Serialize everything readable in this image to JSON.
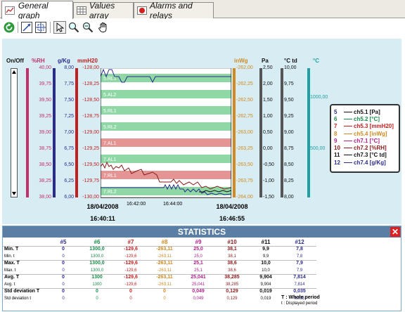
{
  "tabs": [
    {
      "label": "General graph",
      "icon": "line-chart-icon"
    },
    {
      "label": "Values array",
      "icon": "grid-table-icon"
    },
    {
      "label": "Alarms and relays",
      "icon": "alarm-bell-icon"
    }
  ],
  "toolbar": {
    "icons": [
      "refresh-icon",
      "zoom-fit-icon",
      "zoom-window-icon",
      "pointer-icon",
      "zoom-in-icon",
      "zoom-out-icon",
      "pan-hand-icon"
    ]
  },
  "axes": [
    {
      "label": "On/Off",
      "color": "#111111",
      "ticks": []
    },
    {
      "label": "%RH",
      "color": "#c0306a",
      "ticks": [
        "40,00",
        "39,75",
        "39,50",
        "39,25",
        "39,00",
        "38,75",
        "38,50",
        "38,25",
        "38,00"
      ]
    },
    {
      "label": "g/Kg",
      "color": "#2b2b8c",
      "ticks": [
        "8,00",
        "7,75",
        "7,50",
        "7,25",
        "7,00",
        "6,75",
        "6,50",
        "6,25",
        "6,00"
      ]
    },
    {
      "label": "mmH20",
      "color": "#c02020",
      "ticks": [
        "-128,00",
        "-128,25",
        "-128,50",
        "-128,75",
        "-129,00",
        "-129,25",
        "-129,50",
        "-129,75",
        "-130,00"
      ]
    },
    {
      "label": "inWg",
      "color": "#d08a20",
      "ticks": [
        "-262,00",
        "-262,25",
        "-262,50",
        "-262,75",
        "-263,00",
        "-263,25",
        "-263,50",
        "-263,75",
        "-264,00"
      ]
    },
    {
      "label": "Pa",
      "color": "#111111",
      "ticks": [
        "2,50",
        "2,00",
        "1,50",
        "1,00",
        "0,50",
        "0,00",
        "-0,50",
        "-1,00",
        "-1,50"
      ]
    },
    {
      "label": "°C td",
      "color": "#111111",
      "ticks": [
        "10,00",
        "9,75",
        "9,50",
        "9,25",
        "9,00",
        "8,75",
        "8,50",
        "8,25",
        "8,00"
      ]
    },
    {
      "label": "°C",
      "color": "#20a0a0",
      "ticks": [
        "1000,00",
        "500,00"
      ]
    }
  ],
  "bands": [
    {
      "label": "5.RL1",
      "color": "green"
    },
    {
      "label": "5.AL2",
      "color": "green"
    },
    {
      "label": "5.RL1",
      "color": "green"
    },
    {
      "label": "5.RL2",
      "color": "green"
    },
    {
      "label": "7.AL1",
      "color": "red"
    },
    {
      "label": "7.AL1",
      "color": "green"
    },
    {
      "label": "7.RL1",
      "color": "red"
    },
    {
      "label": "7.RL2",
      "color": "green"
    }
  ],
  "time": {
    "start_date": "18/04/2008",
    "start_time": "16:40:11",
    "end_date": "18/04/2008",
    "end_time": "16:46:55",
    "ticks": [
      "16:42:00",
      "16:44:00"
    ]
  },
  "legend": [
    {
      "num": "5",
      "name": "ch5.1 [Pa]",
      "color": "#111111",
      "numcolor": "#2b2b8c"
    },
    {
      "num": "6",
      "name": "ch5.2 [°C]",
      "color": "#1a8a4a",
      "numcolor": "#1a8a4a"
    },
    {
      "num": "7",
      "name": "ch5.3 [mmH20]",
      "color": "#c02020",
      "numcolor": "#c02020"
    },
    {
      "num": "8",
      "name": "ch5.4 [inWg]",
      "color": "#d08a20",
      "numcolor": "#d08a20"
    },
    {
      "num": "9",
      "name": "ch7.1 [°C]",
      "color": "#b0208a",
      "numcolor": "#b0208a"
    },
    {
      "num": "10",
      "name": "ch7.2 [%RH]",
      "color": "#8a1a1a",
      "numcolor": "#8a1a1a"
    },
    {
      "num": "11",
      "name": "ch7.3 [°C td]",
      "color": "#111111",
      "numcolor": "#111111"
    },
    {
      "num": "12",
      "name": "ch7.4 [g/Kg]",
      "color": "#2b2b8c",
      "numcolor": "#2b2b8c"
    }
  ],
  "stats": {
    "title": "STATISTICS",
    "headers": [
      "#5",
      "#6",
      "#7",
      "#8",
      "#9",
      "#10",
      "#11",
      "#12"
    ],
    "header_colors": [
      "#2b2b8c",
      "#1a8a4a",
      "#c02020",
      "#d08a20",
      "#b0208a",
      "#8a1a1a",
      "#111111",
      "#2b2b8c"
    ],
    "rows": [
      {
        "label": "Min. T",
        "sublabel": "Min. t",
        "values": [
          "0",
          "1300,0",
          "-129,6",
          "-263,11",
          "25,0",
          "38,1",
          "9,9",
          "7,8"
        ],
        "subvalues": [
          "0",
          "1300,0",
          "-129,6",
          "-263,11",
          "25,0",
          "38,1",
          "9,9",
          "7,8"
        ]
      },
      {
        "label": "Max. T",
        "sublabel": "Max. t",
        "values": [
          "0",
          "1300,0",
          "-129,6",
          "-263,11",
          "25,1",
          "38,6",
          "10,0",
          "7,9"
        ],
        "subvalues": [
          "0",
          "1300,0",
          "-129,6",
          "-263,11",
          "25,1",
          "38,6",
          "10,0",
          "7,9"
        ]
      },
      {
        "label": "Avg. T",
        "sublabel": "Avg. t",
        "values": [
          "0",
          "1300",
          "-129,6",
          "-263,11",
          "25,041",
          "38,285",
          "9,904",
          "7,814"
        ],
        "subvalues": [
          "0",
          "1300",
          "-129,6",
          "-263,11",
          "25,041",
          "38,285",
          "9,904",
          "7,814"
        ]
      },
      {
        "label": "Std deviation T",
        "sublabel": "Std deviation t",
        "values": [
          "0",
          "0",
          "0",
          "0",
          "0,049",
          "0,129",
          "0,019",
          "0,035"
        ],
        "subvalues": [
          "0",
          "0",
          "0",
          "0",
          "0,049",
          "0,129",
          "0,019",
          "0,035"
        ]
      }
    ],
    "note_T": "T : Whole period",
    "note_t": "t : Displayed period"
  }
}
